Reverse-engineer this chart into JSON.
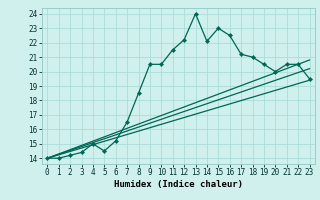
{
  "xlabel": "Humidex (Indice chaleur)",
  "bg_color": "#cff0ec",
  "grid_color": "#aaddda",
  "line_color": "#006655",
  "xlim": [
    -0.5,
    23.5
  ],
  "ylim": [
    13.6,
    24.4
  ],
  "yticks": [
    14,
    15,
    16,
    17,
    18,
    19,
    20,
    21,
    22,
    23,
    24
  ],
  "xticks": [
    0,
    1,
    2,
    3,
    4,
    5,
    6,
    7,
    8,
    9,
    10,
    11,
    12,
    13,
    14,
    15,
    16,
    17,
    18,
    19,
    20,
    21,
    22,
    23
  ],
  "main_x": [
    0,
    1,
    2,
    3,
    4,
    5,
    6,
    7,
    8,
    9,
    10,
    11,
    12,
    13,
    14,
    15,
    16,
    17,
    18,
    19,
    20,
    21,
    22,
    23
  ],
  "main_y": [
    14.0,
    14.0,
    14.2,
    14.4,
    15.0,
    14.5,
    15.2,
    16.5,
    18.5,
    20.5,
    20.5,
    21.5,
    22.2,
    24.0,
    22.1,
    23.0,
    22.5,
    21.2,
    21.0,
    20.5,
    20.0,
    20.5,
    20.5,
    19.5
  ],
  "reg1_y_end": 20.2,
  "reg2_y_end": 19.4,
  "reg3_y_end": 20.8,
  "tick_fontsize": 5.5,
  "xlabel_fontsize": 6.5
}
